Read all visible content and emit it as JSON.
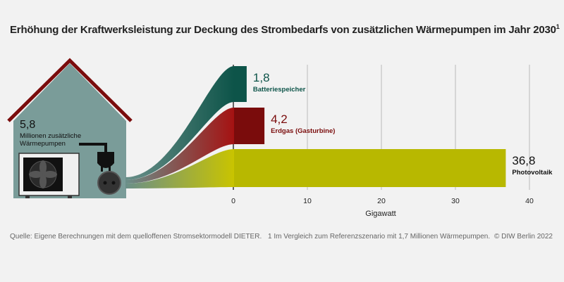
{
  "title": "Erhöhung der Kraftwerksleistung zur Deckung des Strombedarfs von zusätzlichen Wärmepumpen im Jahr 2030",
  "title_footnote_mark": "1",
  "house": {
    "value": "5,8",
    "label_line1": "Millionen zusätzliche",
    "label_line2": "Wärmepumpen"
  },
  "chart_data": {
    "type": "bar",
    "orientation": "horizontal",
    "xlabel": "Gigawatt",
    "xlim": [
      0,
      40
    ],
    "xticks": [
      0,
      10,
      20,
      30,
      40
    ],
    "grid": true,
    "categories": [
      "Batteriespeicher",
      "Erdgas (Gasturbine)",
      "Photovoltaik"
    ],
    "values": [
      1.8,
      4.2,
      36.8
    ],
    "value_labels": [
      "1,8",
      "4,2",
      "36,8"
    ],
    "colors": [
      "#0d5449",
      "#7a0c0c",
      "#b8b800"
    ]
  },
  "footer": {
    "source": "Quelle: Eigene Berechnungen mit dem quelloffenen Stromsektormodell DIETER.",
    "footnote": "1  Im Vergleich zum Referenzszenario mit 1,7 Millionen Wärmepumpen.",
    "copyright": "© DIW Berlin 2022"
  },
  "colors": {
    "background": "#f2f2f2",
    "house": "#7a9c99",
    "roof": "#7a0c0c"
  }
}
